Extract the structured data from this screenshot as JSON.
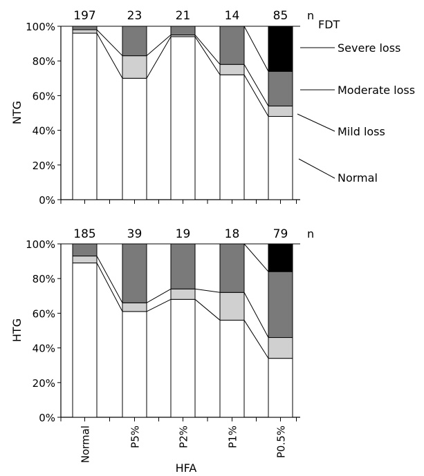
{
  "chart_data": [
    {
      "type": "bar",
      "stacked": true,
      "panel": "top",
      "ylabel": "NTG",
      "xlabel": "",
      "ylim": [
        0,
        100
      ],
      "yticks": [
        "0%",
        "20%",
        "40%",
        "60%",
        "80%",
        "100%"
      ],
      "categories": [
        "Normal",
        "P5%",
        "P2%",
        "P1%",
        "P0.5%"
      ],
      "n_label": "n",
      "n": [
        "197",
        "23",
        "21",
        "14",
        "85"
      ],
      "series": [
        {
          "name": "Normal",
          "values": [
            96,
            70,
            94,
            72,
            48
          ]
        },
        {
          "name": "Mild loss",
          "values": [
            2,
            13,
            1,
            6,
            6
          ]
        },
        {
          "name": "Moderate loss",
          "values": [
            2,
            17,
            5,
            22,
            20
          ]
        },
        {
          "name": "Severe loss",
          "values": [
            0,
            0,
            0,
            0,
            26
          ]
        }
      ]
    },
    {
      "type": "bar",
      "stacked": true,
      "panel": "bottom",
      "ylabel": "HTG",
      "xlabel": "HFA",
      "ylim": [
        0,
        100
      ],
      "yticks": [
        "0%",
        "20%",
        "40%",
        "60%",
        "80%",
        "100%"
      ],
      "categories": [
        "Normal",
        "P5%",
        "P2%",
        "P1%",
        "P0.5%"
      ],
      "n_label": "n",
      "n": [
        "185",
        "39",
        "19",
        "18",
        "79"
      ],
      "series": [
        {
          "name": "Normal",
          "values": [
            89,
            61,
            68,
            56,
            34
          ]
        },
        {
          "name": "Mild loss",
          "values": [
            4,
            5,
            6,
            16,
            12
          ]
        },
        {
          "name": "Moderate loss",
          "values": [
            7,
            34,
            26,
            28,
            38
          ]
        },
        {
          "name": "Severe loss",
          "values": [
            0,
            0,
            0,
            0,
            16
          ]
        }
      ]
    }
  ],
  "legend": {
    "title": "FDT",
    "items": [
      "Severe loss",
      "Moderate loss",
      "Mild loss",
      "Normal"
    ]
  },
  "colors": {
    "Normal": "#ffffff",
    "Mild loss": "#d0d0d0",
    "Moderate loss": "#7a7a7a",
    "Severe loss": "#000000"
  }
}
